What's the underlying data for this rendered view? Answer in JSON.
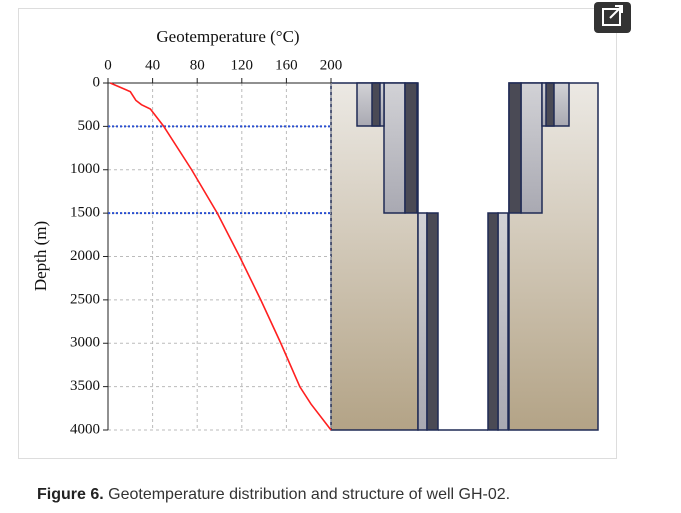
{
  "chart_data": {
    "type": "line",
    "title": "Geotemperature (°C)",
    "y_label": "Depth (m)",
    "x": [
      2,
      20,
      25,
      30,
      38,
      50,
      75,
      98,
      118,
      137,
      155,
      172,
      182,
      200
    ],
    "series": [
      {
        "name": "Geotemperature",
        "color": "#ff2020",
        "values": [
          0,
          100,
          200,
          250,
          300,
          500,
          1000,
          1500,
          2000,
          2500,
          3000,
          3500,
          3700,
          4000
        ]
      }
    ],
    "xlim": [
      0,
      200
    ],
    "xticks": [
      0,
      40,
      80,
      120,
      160,
      200
    ],
    "ylim": [
      0,
      4000
    ],
    "yticks": [
      0,
      500,
      1000,
      1500,
      2000,
      2500,
      3000,
      3500,
      4000
    ],
    "y_inverted": true,
    "grid": true,
    "hlines": [
      500,
      1500
    ],
    "hline_color": "#2a4fd0"
  },
  "caption": {
    "label": "Figure 6.",
    "text": "Geotemperature distribution and structure of well GH-02."
  }
}
